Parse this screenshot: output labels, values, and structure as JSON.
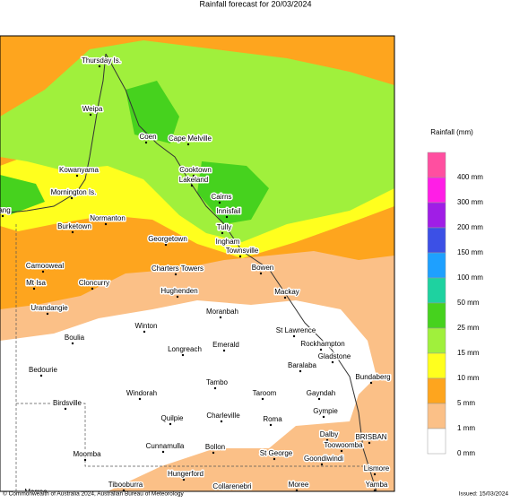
{
  "title": "Rainfall forecast for 20/03/2024",
  "legend": {
    "title": "Rainfall (mm)",
    "items": [
      {
        "label": "400 mm",
        "color": "#ff4fa0"
      },
      {
        "label": "300 mm",
        "color": "#ff1ee6"
      },
      {
        "label": "200 mm",
        "color": "#a01ee6"
      },
      {
        "label": "150 mm",
        "color": "#3c50e6"
      },
      {
        "label": "100 mm",
        "color": "#1ea0ff"
      },
      {
        "label": "50 mm",
        "color": "#1ed2a0"
      },
      {
        "label": "25 mm",
        "color": "#46d21e"
      },
      {
        "label": "15 mm",
        "color": "#a0f03c"
      },
      {
        "label": "10 mm",
        "color": "#ffff1e"
      },
      {
        "label": "5 mm",
        "color": "#fea51e"
      },
      {
        "label": "1 mm",
        "color": "#fbc087"
      },
      {
        "label": "0 mm",
        "color": "#ffffff"
      }
    ]
  },
  "places": [
    "Thursday Is.",
    "Weipa",
    "Coen",
    "Cape Melville",
    "Kowanyama",
    "Cooktown",
    "Lakeland",
    "Mornington Is.",
    "Cairns",
    "Innisfail",
    "ang",
    "Normanton",
    "Burketown",
    "Tully",
    "Georgetown",
    "Ingham",
    "Townsville",
    "Camooweal",
    "Charters Towers",
    "Bowen",
    "Mt Isa",
    "Cloncurry",
    "Hughenden",
    "Mackay",
    "Urandangie",
    "Moranbah",
    "Winton",
    "St Lawrence",
    "Boulia",
    "Rockhampton",
    "Longreach",
    "Emerald",
    "Gladstone",
    "Bedourie",
    "Baralaba",
    "Bundaberg",
    "Tambo",
    "Windorah",
    "Taroom",
    "Gayndah",
    "Birdsville",
    "Gympie",
    "Quilpie",
    "Charleville",
    "Roma",
    "Dalby",
    "BRISBAN",
    "Toowoomba",
    "Cunnamulla",
    "Bollon",
    "St George",
    "Moomba",
    "Goondiwindi",
    "Hungerford",
    "Lismore",
    "Tibooburra",
    "Collarenebri",
    "Moree",
    "Yamba",
    "Marree"
  ],
  "footer": {
    "copyright": "© Commonwealth of Australia 2024, Australian Bureau of Meteorology",
    "issued": "Issued: 15/03/2024"
  }
}
